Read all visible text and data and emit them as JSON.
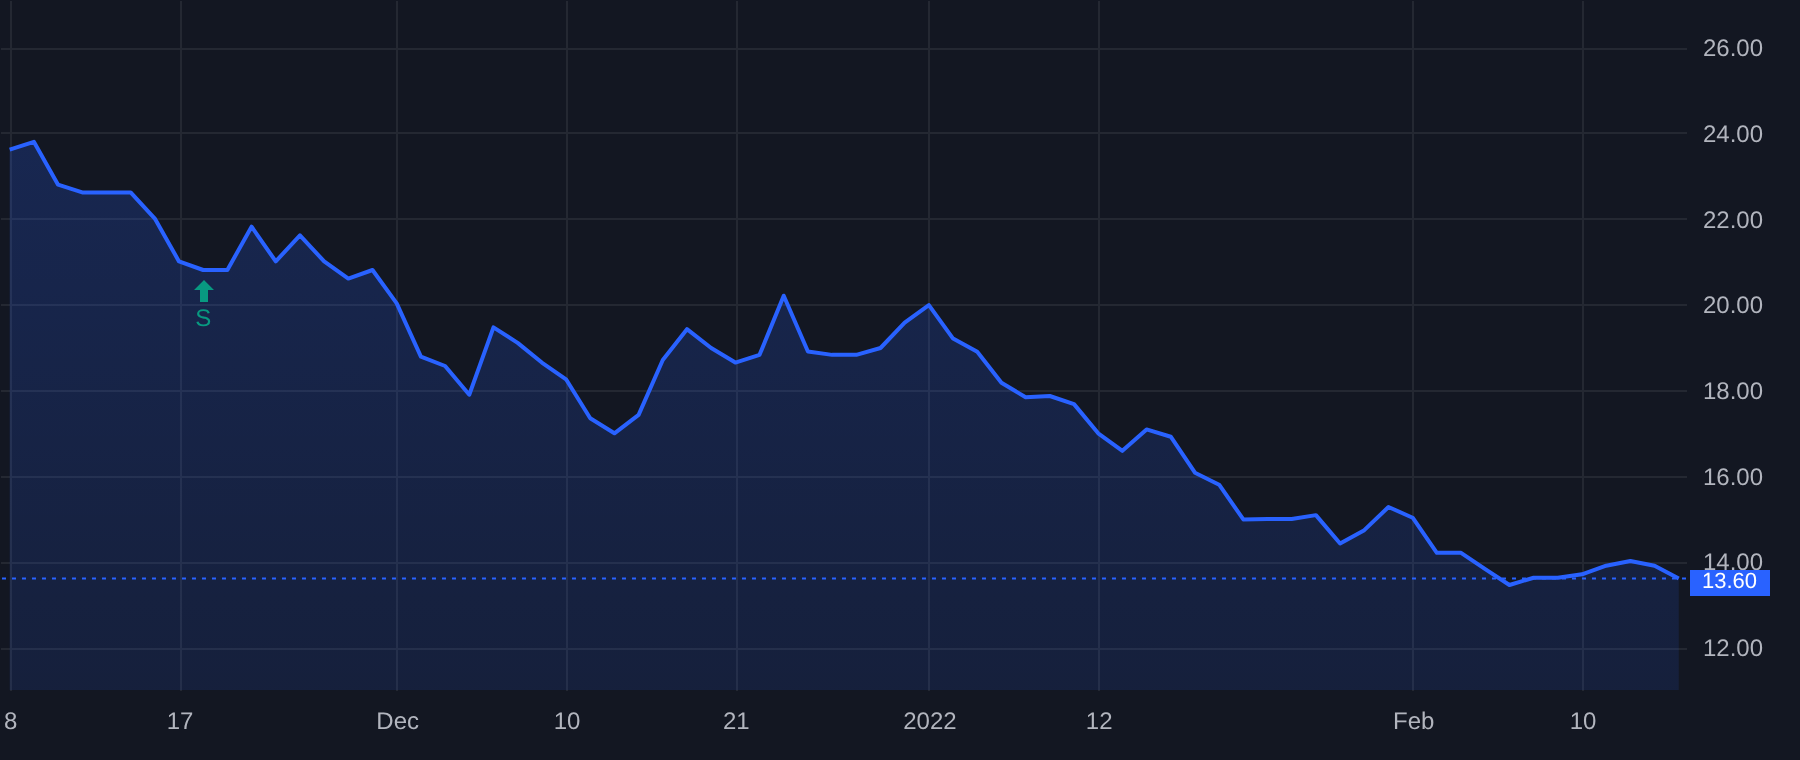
{
  "chart_data": {
    "type": "area",
    "categories": [
      "8",
      null,
      null,
      null,
      null,
      null,
      null,
      "17",
      null,
      null,
      null,
      null,
      null,
      null,
      null,
      null,
      "Dec",
      null,
      null,
      null,
      null,
      null,
      null,
      "10",
      null,
      null,
      null,
      null,
      null,
      null,
      "21",
      null,
      null,
      null,
      null,
      null,
      null,
      null,
      "2022",
      null,
      null,
      null,
      null,
      null,
      null,
      "12",
      null,
      null,
      null,
      null,
      null,
      null,
      null,
      null,
      null,
      null,
      null,
      null,
      "Feb",
      null,
      null,
      null,
      null,
      null,
      null,
      "10",
      null,
      null,
      null,
      null
    ],
    "series": [
      {
        "color": "#2962ff",
        "values": [
          23.61,
          23.79,
          22.79,
          22.61,
          22.61,
          22.61,
          22.0,
          21.0,
          20.8,
          20.8,
          21.81,
          21.0,
          21.61,
          21.0,
          20.6,
          20.8,
          20.02,
          18.78,
          18.56,
          17.89,
          19.46,
          19.1,
          18.64,
          18.25,
          17.34,
          16.99,
          17.42,
          18.7,
          19.42,
          18.98,
          18.64,
          18.82,
          20.2,
          18.9,
          18.82,
          18.82,
          18.98,
          19.57,
          19.98,
          19.2,
          18.89,
          18.17,
          17.83,
          17.86,
          17.67,
          16.99,
          16.58,
          17.08,
          16.91,
          16.07,
          15.79,
          14.98,
          14.99,
          14.99,
          15.08,
          14.42,
          14.73,
          15.27,
          15.02,
          14.2,
          14.2,
          13.82,
          13.45,
          13.62,
          13.62,
          13.7,
          13.9,
          14.01,
          13.9,
          13.6
        ]
      }
    ],
    "ylim": [
      11,
      27.1
    ],
    "yticks": [
      {
        "value": 12,
        "label": "12.00"
      },
      {
        "value": 14,
        "label": "14.00"
      },
      {
        "value": 16,
        "label": "16.00"
      },
      {
        "value": 18,
        "label": "18.00"
      },
      {
        "value": 20,
        "label": "20.00"
      },
      {
        "value": 22,
        "label": "22.00"
      },
      {
        "value": 24,
        "label": "24.00"
      },
      {
        "value": 26,
        "label": "26.00"
      }
    ],
    "grid": true,
    "ref_lines": [
      {
        "axis": "y",
        "value": 13.6,
        "label": "13.60",
        "color": "#2962ff",
        "line_style": "dotted"
      }
    ],
    "annotations": [
      "S"
    ]
  }
}
